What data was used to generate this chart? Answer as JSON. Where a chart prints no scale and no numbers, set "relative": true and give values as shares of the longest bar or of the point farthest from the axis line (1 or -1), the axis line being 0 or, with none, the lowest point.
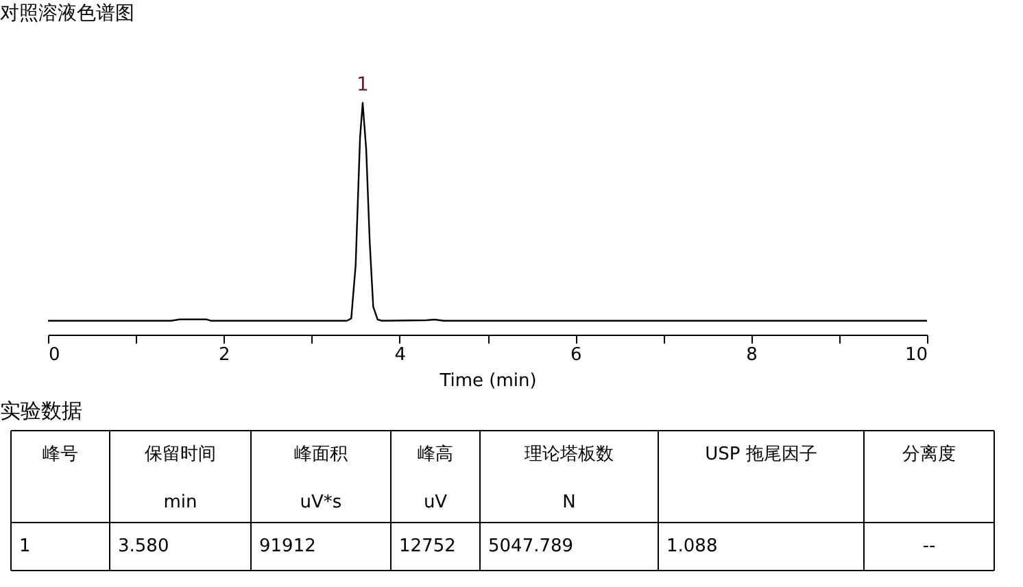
{
  "chart_data": [
    {
      "type": "line",
      "title": "对照溶液色谱图",
      "xlabel": "Time (min)",
      "relative": true,
      "xlim": [
        0,
        10
      ],
      "xticks": [
        0,
        {
          "value": 1,
          "label": null
        },
        2,
        {
          "value": 3,
          "label": null
        },
        4,
        {
          "value": 5,
          "label": null
        },
        6,
        {
          "value": 7,
          "label": null
        },
        8,
        {
          "value": 9,
          "label": null
        },
        10
      ],
      "grid": false,
      "series": [
        {
          "color": "#000000",
          "x": [
            0,
            1.4,
            1.5,
            1.8,
            1.85,
            3.4,
            3.45,
            3.5,
            3.55,
            3.58,
            3.62,
            3.66,
            3.7,
            3.75,
            3.8,
            4.3,
            4.4,
            4.5,
            10
          ],
          "values": [
            0.06,
            0.06,
            0.066,
            0.066,
            0.06,
            0.06,
            0.07,
            0.3,
            0.85,
            1,
            0.8,
            0.4,
            0.12,
            0.065,
            0.06,
            0.062,
            0.065,
            0.06,
            0.06
          ]
        }
      ],
      "annotations": [
        {
          "text": "1",
          "x": 3.58,
          "y": 1
        }
      ]
    },
    {
      "type": "other",
      "title": "实验数据",
      "categories": [
        "峰号",
        "保留时间\nmin",
        "峰面积\nuV*s",
        "峰高\nuV",
        "理论塔板数\nN",
        "USP 拖尾因子",
        "分离度"
      ],
      "annotations": [
        "1",
        "3.580",
        "91912",
        "12752",
        "5047.789",
        "1.088",
        "--"
      ]
    }
  ]
}
